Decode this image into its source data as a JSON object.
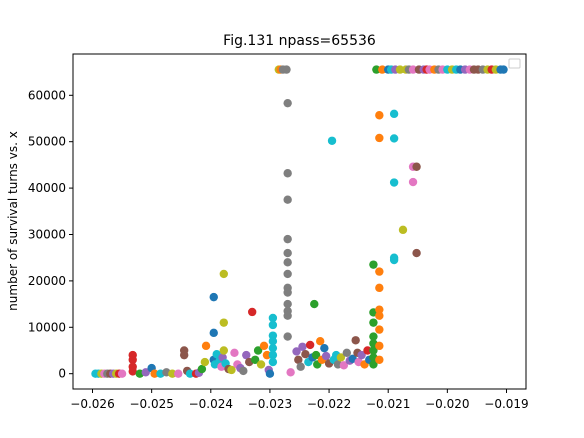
{
  "chart_data": {
    "type": "scatter",
    "title": "Fig.131 npass=65536",
    "xlabel": "",
    "ylabel": "number  of survival turns vs. x",
    "xlim": [
      -0.02633,
      -0.01867
    ],
    "ylim": [
      -3300,
      68900
    ],
    "xticks": [
      -0.026,
      -0.025,
      -0.024,
      -0.023,
      -0.022,
      -0.021,
      -0.02,
      -0.019
    ],
    "xtick_labels": [
      "−0.026",
      "−0.025",
      "−0.024",
      "−0.023",
      "−0.022",
      "−0.021",
      "−0.020",
      "−0.019"
    ],
    "yticks": [
      0,
      10000,
      20000,
      30000,
      40000,
      50000,
      60000
    ],
    "ytick_labels": [
      "0",
      "10000",
      "20000",
      "30000",
      "40000",
      "50000",
      "60000"
    ],
    "grid": false,
    "legend": "top-right",
    "colors": {
      "blue": "#1f77b4",
      "orange": "#ff7f0e",
      "green": "#2ca02c",
      "red": "#d62728",
      "purple": "#9467bd",
      "brown": "#8c564b",
      "pink": "#e377c2",
      "gray": "#7f7f7f",
      "olive": "#bcbd22",
      "cyan": "#17becf"
    },
    "points": [
      [
        -0.02595,
        0,
        "cyan"
      ],
      [
        -0.0259,
        0,
        "cyan"
      ],
      [
        -0.02585,
        0,
        "olive"
      ],
      [
        -0.0258,
        0,
        "pink"
      ],
      [
        -0.02575,
        0,
        "gray"
      ],
      [
        -0.0257,
        0,
        "brown"
      ],
      [
        -0.02565,
        0,
        "purple"
      ],
      [
        -0.0256,
        0,
        "olive"
      ],
      [
        -0.02555,
        0,
        "red"
      ],
      [
        -0.0255,
        0,
        "pink"
      ],
      [
        -0.02532,
        4000,
        "red"
      ],
      [
        -0.02532,
        3000,
        "red"
      ],
      [
        -0.02532,
        1500,
        "red"
      ],
      [
        -0.02532,
        500,
        "red"
      ],
      [
        -0.0252,
        0,
        "green"
      ],
      [
        -0.0251,
        300,
        "purple"
      ],
      [
        -0.025,
        1200,
        "blue"
      ],
      [
        -0.02495,
        0,
        "orange"
      ],
      [
        -0.02485,
        0,
        "cyan"
      ],
      [
        -0.02475,
        300,
        "gray"
      ],
      [
        -0.02465,
        0,
        "olive"
      ],
      [
        -0.02455,
        0,
        "pink"
      ],
      [
        -0.02445,
        5000,
        "brown"
      ],
      [
        -0.02445,
        4000,
        "brown"
      ],
      [
        -0.0244,
        600,
        "brown"
      ],
      [
        -0.02435,
        0,
        "cyan"
      ],
      [
        -0.02425,
        0,
        "red"
      ],
      [
        -0.0242,
        200,
        "purple"
      ],
      [
        -0.02415,
        1000,
        "green"
      ],
      [
        -0.0241,
        2500,
        "olive"
      ],
      [
        -0.02408,
        6000,
        "orange"
      ],
      [
        -0.02395,
        16500,
        "blue"
      ],
      [
        -0.02395,
        8800,
        "blue"
      ],
      [
        -0.02395,
        3000,
        "blue"
      ],
      [
        -0.02393,
        2000,
        "cyan"
      ],
      [
        -0.0239,
        4200,
        "cyan"
      ],
      [
        -0.02385,
        2800,
        "cyan"
      ],
      [
        -0.02382,
        1500,
        "pink"
      ],
      [
        -0.0238,
        3500,
        "purple"
      ],
      [
        -0.02378,
        21500,
        "olive"
      ],
      [
        -0.02378,
        11000,
        "olive"
      ],
      [
        -0.02378,
        5000,
        "olive"
      ],
      [
        -0.02375,
        2200,
        "cyan"
      ],
      [
        -0.0237,
        1000,
        "brown"
      ],
      [
        -0.02365,
        800,
        "olive"
      ],
      [
        -0.0236,
        4500,
        "pink"
      ],
      [
        -0.02355,
        2000,
        "pink"
      ],
      [
        -0.0235,
        1200,
        "purple"
      ],
      [
        -0.02345,
        600,
        "gray"
      ],
      [
        -0.0234,
        4000,
        "purple"
      ],
      [
        -0.02335,
        2500,
        "brown"
      ],
      [
        -0.0233,
        13300,
        "red"
      ],
      [
        -0.02325,
        3000,
        "green"
      ],
      [
        -0.0232,
        5000,
        "green"
      ],
      [
        -0.02315,
        2000,
        "olive"
      ],
      [
        -0.0231,
        6000,
        "orange"
      ],
      [
        -0.02305,
        4000,
        "orange"
      ],
      [
        -0.02302,
        800,
        "purple"
      ],
      [
        -0.023,
        0,
        "blue"
      ],
      [
        -0.02295,
        12000,
        "cyan"
      ],
      [
        -0.02295,
        10500,
        "cyan"
      ],
      [
        -0.02295,
        8200,
        "cyan"
      ],
      [
        -0.02295,
        7000,
        "cyan"
      ],
      [
        -0.02295,
        5500,
        "cyan"
      ],
      [
        -0.02295,
        4000,
        "cyan"
      ],
      [
        -0.02295,
        2500,
        "cyan"
      ],
      [
        -0.02285,
        65536,
        "olive"
      ],
      [
        -0.02282,
        65536,
        "orange"
      ],
      [
        -0.02278,
        65536,
        "gray"
      ],
      [
        -0.02272,
        65536,
        "gray"
      ],
      [
        -0.0227,
        58300,
        "gray"
      ],
      [
        -0.0227,
        43200,
        "gray"
      ],
      [
        -0.0227,
        37500,
        "gray"
      ],
      [
        -0.0227,
        29000,
        "gray"
      ],
      [
        -0.0227,
        26000,
        "gray"
      ],
      [
        -0.0227,
        24000,
        "gray"
      ],
      [
        -0.0227,
        21500,
        "gray"
      ],
      [
        -0.0227,
        18500,
        "gray"
      ],
      [
        -0.0227,
        17500,
        "gray"
      ],
      [
        -0.0227,
        15000,
        "gray"
      ],
      [
        -0.0227,
        13500,
        "gray"
      ],
      [
        -0.0227,
        12500,
        "gray"
      ],
      [
        -0.0227,
        8000,
        "gray"
      ],
      [
        -0.02265,
        300,
        "pink"
      ],
      [
        -0.02255,
        4800,
        "purple"
      ],
      [
        -0.02252,
        3000,
        "brown"
      ],
      [
        -0.02248,
        1500,
        "gray"
      ],
      [
        -0.02245,
        5800,
        "purple"
      ],
      [
        -0.0224,
        4200,
        "brown"
      ],
      [
        -0.02235,
        2500,
        "cyan"
      ],
      [
        -0.02232,
        6200,
        "red"
      ],
      [
        -0.02228,
        3500,
        "blue"
      ],
      [
        -0.02225,
        15000,
        "green"
      ],
      [
        -0.02222,
        4000,
        "green"
      ],
      [
        -0.0222,
        2000,
        "green"
      ],
      [
        -0.02215,
        7000,
        "orange"
      ],
      [
        -0.02212,
        3000,
        "orange"
      ],
      [
        -0.02208,
        5500,
        "blue"
      ],
      [
        -0.02205,
        3800,
        "purple"
      ],
      [
        -0.022,
        2200,
        "brown"
      ],
      [
        -0.02195,
        50200,
        "cyan"
      ],
      [
        -0.02192,
        3000,
        "cyan"
      ],
      [
        -0.02188,
        4000,
        "cyan"
      ],
      [
        -0.02185,
        2000,
        "gray"
      ],
      [
        -0.0218,
        3500,
        "olive"
      ],
      [
        -0.02175,
        1800,
        "pink"
      ],
      [
        -0.0217,
        4500,
        "gray"
      ],
      [
        -0.02165,
        2800,
        "purple"
      ],
      [
        -0.0216,
        3200,
        "blue"
      ],
      [
        -0.02155,
        7200,
        "brown"
      ],
      [
        -0.02152,
        4500,
        "brown"
      ],
      [
        -0.0215,
        2500,
        "pink"
      ],
      [
        -0.02145,
        4000,
        "purple"
      ],
      [
        -0.0214,
        2000,
        "orange"
      ],
      [
        -0.02135,
        5000,
        "red"
      ],
      [
        -0.02132,
        3000,
        "blue"
      ],
      [
        -0.02125,
        23500,
        "green"
      ],
      [
        -0.02125,
        13200,
        "green"
      ],
      [
        -0.02125,
        11000,
        "green"
      ],
      [
        -0.02125,
        8000,
        "green"
      ],
      [
        -0.02125,
        6500,
        "green"
      ],
      [
        -0.02125,
        5000,
        "green"
      ],
      [
        -0.02125,
        3500,
        "green"
      ],
      [
        -0.02125,
        2000,
        "green"
      ],
      [
        -0.0212,
        65536,
        "green"
      ],
      [
        -0.02115,
        55700,
        "orange"
      ],
      [
        -0.02115,
        50800,
        "orange"
      ],
      [
        -0.02115,
        22000,
        "orange"
      ],
      [
        -0.02115,
        18500,
        "orange"
      ],
      [
        -0.02115,
        13800,
        "orange"
      ],
      [
        -0.02115,
        12500,
        "orange"
      ],
      [
        -0.02115,
        9500,
        "orange"
      ],
      [
        -0.02115,
        6000,
        "orange"
      ],
      [
        -0.02115,
        3000,
        "orange"
      ],
      [
        -0.0211,
        65536,
        "orange"
      ],
      [
        -0.021,
        65536,
        "blue"
      ],
      [
        -0.02095,
        65536,
        "cyan"
      ],
      [
        -0.0209,
        56000,
        "cyan"
      ],
      [
        -0.0209,
        50700,
        "cyan"
      ],
      [
        -0.0209,
        41200,
        "cyan"
      ],
      [
        -0.0209,
        25000,
        "cyan"
      ],
      [
        -0.0209,
        24500,
        "cyan"
      ],
      [
        -0.02088,
        65536,
        "purple"
      ],
      [
        -0.0208,
        65536,
        "olive"
      ],
      [
        -0.02075,
        31000,
        "olive"
      ],
      [
        -0.0207,
        65536,
        "olive"
      ],
      [
        -0.02065,
        65536,
        "gray"
      ],
      [
        -0.02058,
        65536,
        "pink"
      ],
      [
        -0.02058,
        44600,
        "pink"
      ],
      [
        -0.02058,
        41300,
        "pink"
      ],
      [
        -0.02052,
        44600,
        "brown"
      ],
      [
        -0.02052,
        26000,
        "brown"
      ],
      [
        -0.02048,
        65536,
        "brown"
      ],
      [
        -0.0204,
        65536,
        "purple"
      ],
      [
        -0.02035,
        65536,
        "red"
      ],
      [
        -0.0203,
        65536,
        "pink"
      ],
      [
        -0.02022,
        65536,
        "orange"
      ],
      [
        -0.02015,
        65536,
        "gray"
      ],
      [
        -0.02008,
        65536,
        "pink"
      ],
      [
        -0.02,
        65536,
        "cyan"
      ],
      [
        -0.01992,
        65536,
        "olive"
      ],
      [
        -0.01985,
        65536,
        "cyan"
      ],
      [
        -0.01978,
        65536,
        "blue"
      ],
      [
        -0.0197,
        65536,
        "purple"
      ],
      [
        -0.01962,
        65536,
        "pink"
      ],
      [
        -0.01955,
        65536,
        "brown"
      ],
      [
        -0.01948,
        65536,
        "brown"
      ],
      [
        -0.0194,
        65536,
        "gray"
      ],
      [
        -0.01932,
        65536,
        "olive"
      ],
      [
        -0.01925,
        65536,
        "red"
      ],
      [
        -0.01918,
        65536,
        "olive"
      ],
      [
        -0.0191,
        65536,
        "blue"
      ],
      [
        -0.01905,
        65536,
        "blue"
      ]
    ]
  }
}
